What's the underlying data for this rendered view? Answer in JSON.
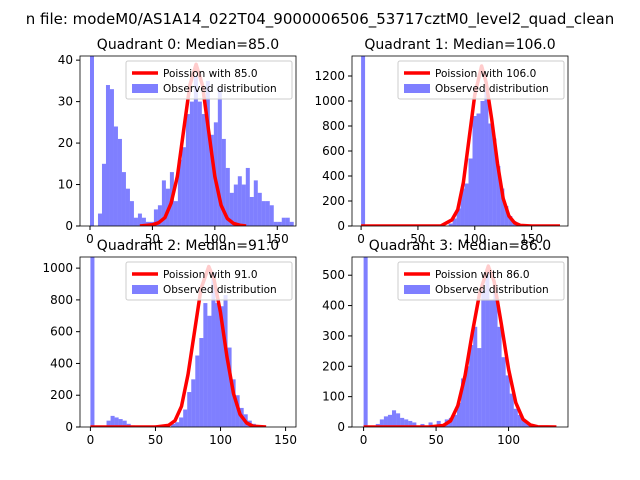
{
  "figure": {
    "suptitle": "n file: modeM0/AS1A14_022T04_9000006506_53717cztM0_level2_quad_clean"
  },
  "chart_data": [
    {
      "type": "bar",
      "title": "Quadrant 0: Median=85.0",
      "xlim": [
        -8,
        165
      ],
      "ylim": [
        0,
        41
      ],
      "xticks": [
        0,
        50,
        100,
        150
      ],
      "yticks": [
        0,
        10,
        20,
        30,
        40
      ],
      "median": 85,
      "legend": {
        "placement": "top-right",
        "line_label": "Poission with 85.0",
        "bar_label": "Observed distribution"
      },
      "bin_width": 3.2,
      "histogram": [
        {
          "x": 0,
          "y": 41
        },
        {
          "x": 6.4,
          "y": 3
        },
        {
          "x": 9.6,
          "y": 15
        },
        {
          "x": 12.8,
          "y": 34
        },
        {
          "x": 16,
          "y": 33
        },
        {
          "x": 19.2,
          "y": 24
        },
        {
          "x": 22.4,
          "y": 21
        },
        {
          "x": 25.6,
          "y": 13
        },
        {
          "x": 28.8,
          "y": 9
        },
        {
          "x": 32,
          "y": 6
        },
        {
          "x": 35.2,
          "y": 2
        },
        {
          "x": 38.4,
          "y": 3
        },
        {
          "x": 41.6,
          "y": 2
        },
        {
          "x": 44.8,
          "y": 1
        },
        {
          "x": 48,
          "y": 1
        },
        {
          "x": 51.2,
          "y": 4
        },
        {
          "x": 54.4,
          "y": 5
        },
        {
          "x": 57.6,
          "y": 11
        },
        {
          "x": 60.8,
          "y": 9
        },
        {
          "x": 64,
          "y": 13
        },
        {
          "x": 67.2,
          "y": 6
        },
        {
          "x": 70.4,
          "y": 16
        },
        {
          "x": 73.6,
          "y": 19
        },
        {
          "x": 76.8,
          "y": 27
        },
        {
          "x": 80,
          "y": 30
        },
        {
          "x": 83.2,
          "y": 36
        },
        {
          "x": 86.4,
          "y": 30
        },
        {
          "x": 89.6,
          "y": 27
        },
        {
          "x": 92.8,
          "y": 35
        },
        {
          "x": 96,
          "y": 22
        },
        {
          "x": 99.2,
          "y": 25
        },
        {
          "x": 102.4,
          "y": 33
        },
        {
          "x": 105.6,
          "y": 21
        },
        {
          "x": 108.8,
          "y": 14
        },
        {
          "x": 112,
          "y": 8
        },
        {
          "x": 115.2,
          "y": 10
        },
        {
          "x": 118.4,
          "y": 12
        },
        {
          "x": 121.6,
          "y": 10
        },
        {
          "x": 124.8,
          "y": 14
        },
        {
          "x": 128,
          "y": 7
        },
        {
          "x": 131.2,
          "y": 11
        },
        {
          "x": 134.4,
          "y": 8
        },
        {
          "x": 137.6,
          "y": 6
        },
        {
          "x": 140.8,
          "y": 6
        },
        {
          "x": 144,
          "y": 5
        },
        {
          "x": 147.2,
          "y": 1
        },
        {
          "x": 150.4,
          "y": 1
        },
        {
          "x": 153.6,
          "y": 2
        },
        {
          "x": 156.8,
          "y": 2
        },
        {
          "x": 160,
          "y": 1
        }
      ],
      "poisson_curve": [
        [
          40,
          0
        ],
        [
          50,
          0.3
        ],
        [
          55,
          0.8
        ],
        [
          60,
          2
        ],
        [
          65,
          5.5
        ],
        [
          70,
          12
        ],
        [
          75,
          23
        ],
        [
          80,
          34
        ],
        [
          85,
          39
        ],
        [
          90,
          34
        ],
        [
          95,
          23
        ],
        [
          100,
          12
        ],
        [
          105,
          5
        ],
        [
          110,
          1.8
        ],
        [
          115,
          0.6
        ],
        [
          120,
          0.2
        ],
        [
          125,
          0
        ]
      ]
    },
    {
      "type": "bar",
      "title": "Quadrant 1: Median=106.0",
      "xlim": [
        -8,
        182
      ],
      "ylim": [
        0,
        1360
      ],
      "xticks": [
        0,
        50,
        100,
        150
      ],
      "yticks": [
        0,
        200,
        400,
        600,
        800,
        1000,
        1200
      ],
      "median": 106,
      "legend": {
        "placement": "top-right",
        "line_label": "Poission with 106.0",
        "bar_label": "Observed distribution"
      },
      "bin_width": 3.5,
      "histogram": [
        {
          "x": 0,
          "y": 1360
        },
        {
          "x": 77,
          "y": 20
        },
        {
          "x": 80.5,
          "y": 60
        },
        {
          "x": 84,
          "y": 140
        },
        {
          "x": 87.5,
          "y": 300
        },
        {
          "x": 91,
          "y": 340
        },
        {
          "x": 94.5,
          "y": 540
        },
        {
          "x": 98,
          "y": 880
        },
        {
          "x": 101.5,
          "y": 900
        },
        {
          "x": 105,
          "y": 1000
        },
        {
          "x": 108.5,
          "y": 1090
        },
        {
          "x": 112,
          "y": 820
        },
        {
          "x": 115.5,
          "y": 700
        },
        {
          "x": 119,
          "y": 480
        },
        {
          "x": 122.5,
          "y": 300
        },
        {
          "x": 126,
          "y": 160
        },
        {
          "x": 129.5,
          "y": 80
        },
        {
          "x": 133,
          "y": 40
        },
        {
          "x": 136.5,
          "y": 20
        },
        {
          "x": 140,
          "y": 10
        }
      ],
      "poisson_curve": [
        [
          0,
          0
        ],
        [
          70,
          0
        ],
        [
          80,
          50
        ],
        [
          85,
          130
        ],
        [
          90,
          350
        ],
        [
          95,
          700
        ],
        [
          100,
          1050
        ],
        [
          106,
          1280
        ],
        [
          110,
          1150
        ],
        [
          115,
          850
        ],
        [
          120,
          500
        ],
        [
          125,
          220
        ],
        [
          130,
          80
        ],
        [
          135,
          25
        ],
        [
          140,
          5
        ],
        [
          150,
          0
        ],
        [
          175,
          0
        ]
      ]
    },
    {
      "type": "bar",
      "title": "Quadrant 2: Median=91.0",
      "xlim": [
        -8,
        158
      ],
      "ylim": [
        0,
        1070
      ],
      "xticks": [
        0,
        50,
        100,
        150
      ],
      "yticks": [
        0,
        200,
        400,
        600,
        800,
        1000
      ],
      "median": 91,
      "legend": {
        "placement": "top-right",
        "line_label": "Poission with 91.0",
        "bar_label": "Observed distribution"
      },
      "bin_width": 3.1,
      "histogram": [
        {
          "x": 0,
          "y": 1070
        },
        {
          "x": 12.4,
          "y": 40
        },
        {
          "x": 15.5,
          "y": 70
        },
        {
          "x": 18.6,
          "y": 60
        },
        {
          "x": 21.7,
          "y": 50
        },
        {
          "x": 24.8,
          "y": 40
        },
        {
          "x": 27.9,
          "y": 20
        },
        {
          "x": 31,
          "y": 10
        },
        {
          "x": 49.6,
          "y": 10
        },
        {
          "x": 55.8,
          "y": 15
        },
        {
          "x": 62,
          "y": 20
        },
        {
          "x": 65.1,
          "y": 30
        },
        {
          "x": 68.2,
          "y": 60
        },
        {
          "x": 71.3,
          "y": 110
        },
        {
          "x": 74.4,
          "y": 220
        },
        {
          "x": 77.5,
          "y": 300
        },
        {
          "x": 80.6,
          "y": 450
        },
        {
          "x": 83.7,
          "y": 560
        },
        {
          "x": 86.8,
          "y": 780
        },
        {
          "x": 89.9,
          "y": 700
        },
        {
          "x": 93,
          "y": 970
        },
        {
          "x": 96.1,
          "y": 780
        },
        {
          "x": 99.2,
          "y": 760
        },
        {
          "x": 102.3,
          "y": 830
        },
        {
          "x": 105.4,
          "y": 500
        },
        {
          "x": 108.5,
          "y": 300
        },
        {
          "x": 111.6,
          "y": 200
        },
        {
          "x": 114.7,
          "y": 120
        },
        {
          "x": 117.8,
          "y": 80
        },
        {
          "x": 120.9,
          "y": 40
        },
        {
          "x": 124,
          "y": 20
        },
        {
          "x": 127.1,
          "y": 10
        }
      ],
      "poisson_curve": [
        [
          0,
          0
        ],
        [
          50,
          0
        ],
        [
          60,
          10
        ],
        [
          65,
          40
        ],
        [
          70,
          130
        ],
        [
          75,
          330
        ],
        [
          80,
          600
        ],
        [
          85,
          870
        ],
        [
          91,
          1010
        ],
        [
          95,
          930
        ],
        [
          100,
          720
        ],
        [
          105,
          440
        ],
        [
          110,
          210
        ],
        [
          115,
          80
        ],
        [
          120,
          25
        ],
        [
          125,
          5
        ],
        [
          135,
          0
        ]
      ]
    },
    {
      "type": "bar",
      "title": "Quadrant 3: Median=86.0",
      "xlim": [
        -8,
        141
      ],
      "ylim": [
        0,
        560
      ],
      "xticks": [
        0,
        50,
        100
      ],
      "yticks": [
        0,
        100,
        200,
        300,
        400,
        500
      ],
      "median": 86,
      "legend": {
        "placement": "top-right",
        "line_label": "Poission with 86.0",
        "bar_label": "Observed distribution"
      },
      "bin_width": 2.8,
      "histogram": [
        {
          "x": 0,
          "y": 560
        },
        {
          "x": 5.6,
          "y": 5
        },
        {
          "x": 8.4,
          "y": 10
        },
        {
          "x": 11.2,
          "y": 25
        },
        {
          "x": 14,
          "y": 35
        },
        {
          "x": 16.8,
          "y": 40
        },
        {
          "x": 19.6,
          "y": 55
        },
        {
          "x": 22.4,
          "y": 45
        },
        {
          "x": 25.2,
          "y": 30
        },
        {
          "x": 28,
          "y": 25
        },
        {
          "x": 30.8,
          "y": 20
        },
        {
          "x": 33.6,
          "y": 15
        },
        {
          "x": 39.2,
          "y": 10
        },
        {
          "x": 44.8,
          "y": 15
        },
        {
          "x": 50.4,
          "y": 20
        },
        {
          "x": 56,
          "y": 25
        },
        {
          "x": 58.8,
          "y": 30
        },
        {
          "x": 61.6,
          "y": 40
        },
        {
          "x": 64.4,
          "y": 80
        },
        {
          "x": 67.2,
          "y": 160
        },
        {
          "x": 70,
          "y": 200
        },
        {
          "x": 72.8,
          "y": 270
        },
        {
          "x": 75.6,
          "y": 330
        },
        {
          "x": 78.4,
          "y": 260
        },
        {
          "x": 81.2,
          "y": 450
        },
        {
          "x": 84,
          "y": 520
        },
        {
          "x": 86.8,
          "y": 420
        },
        {
          "x": 89.6,
          "y": 460
        },
        {
          "x": 92.4,
          "y": 330
        },
        {
          "x": 95.2,
          "y": 230
        },
        {
          "x": 98,
          "y": 170
        },
        {
          "x": 100.8,
          "y": 110
        },
        {
          "x": 103.6,
          "y": 60
        },
        {
          "x": 106.4,
          "y": 40
        },
        {
          "x": 109.2,
          "y": 20
        },
        {
          "x": 112,
          "y": 10
        }
      ],
      "poisson_curve": [
        [
          0,
          0
        ],
        [
          45,
          0
        ],
        [
          55,
          5
        ],
        [
          60,
          20
        ],
        [
          65,
          70
        ],
        [
          70,
          170
        ],
        [
          75,
          310
        ],
        [
          80,
          440
        ],
        [
          86,
          530
        ],
        [
          90,
          480
        ],
        [
          95,
          340
        ],
        [
          100,
          190
        ],
        [
          105,
          80
        ],
        [
          110,
          25
        ],
        [
          115,
          7
        ],
        [
          120,
          1
        ],
        [
          133,
          0
        ]
      ]
    }
  ]
}
